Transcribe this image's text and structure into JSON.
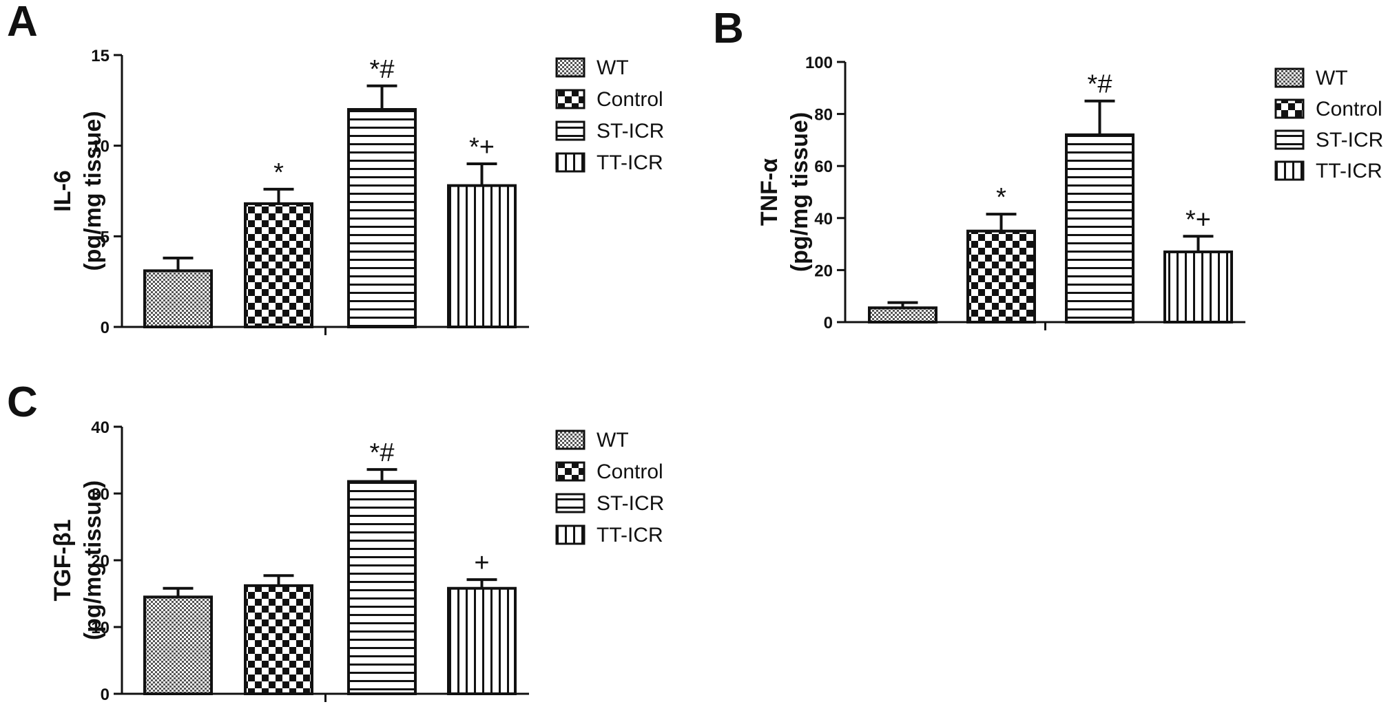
{
  "chart_data": [
    {
      "type": "bar",
      "panel": "A",
      "ylabel_line1": "IL-6",
      "ylabel_line2": "(pg/mg tissue)",
      "ylim": [
        0,
        15
      ],
      "yticks": [
        0,
        5,
        10,
        15
      ],
      "categories": [
        "WT",
        "Control",
        "ST-ICR",
        "TT-ICR"
      ],
      "values": [
        3.1,
        6.8,
        12.0,
        7.8
      ],
      "errors": [
        0.7,
        0.8,
        1.3,
        1.2
      ],
      "annotations": [
        "",
        "*",
        "*#",
        "*+"
      ],
      "legend": [
        "WT",
        "Control",
        "ST-ICR",
        "TT-ICR"
      ],
      "legend_position": "right",
      "grid": false
    },
    {
      "type": "bar",
      "panel": "B",
      "ylabel_line1": "TNF-α",
      "ylabel_line2": "(pg/mg tissue)",
      "ylim": [
        0,
        100
      ],
      "yticks": [
        0,
        20,
        40,
        60,
        80,
        100
      ],
      "categories": [
        "WT",
        "Control",
        "ST-ICR",
        "TT-ICR"
      ],
      "values": [
        5.5,
        35.0,
        72.0,
        27.0
      ],
      "errors": [
        2.0,
        6.5,
        13.0,
        6.0
      ],
      "annotations": [
        "",
        "*",
        "*#",
        "*+"
      ],
      "legend": [
        "WT",
        "Control",
        "ST-ICR",
        "TT-ICR"
      ],
      "legend_position": "right",
      "grid": false
    },
    {
      "type": "bar",
      "panel": "C",
      "ylabel_line1": "TGF-β1",
      "ylabel_line2": "(pg/mg tissue)",
      "ylim": [
        0,
        40
      ],
      "yticks": [
        0,
        10,
        20,
        30,
        40
      ],
      "categories": [
        "WT",
        "Control",
        "ST-ICR",
        "TT-ICR"
      ],
      "values": [
        14.5,
        16.2,
        31.8,
        15.8
      ],
      "errors": [
        1.3,
        1.5,
        1.8,
        1.3
      ],
      "annotations": [
        "",
        "",
        "*#",
        "+"
      ],
      "legend": [
        "WT",
        "Control",
        "ST-ICR",
        "TT-ICR"
      ],
      "legend_position": "right",
      "grid": false
    }
  ]
}
